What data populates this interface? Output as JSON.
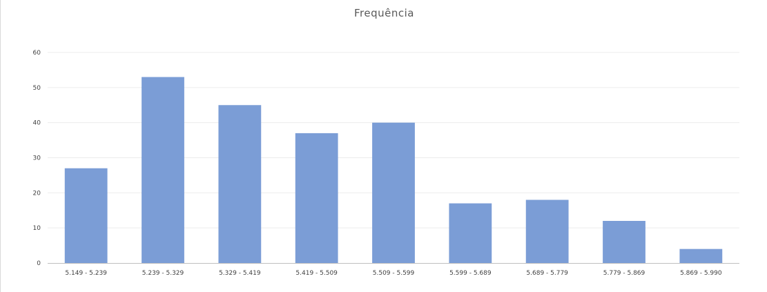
{
  "chart_data": {
    "type": "bar",
    "title": "Frequência",
    "xlabel": "",
    "ylabel": "",
    "categories": [
      "5.149 - 5.239",
      "5.239 - 5.329",
      "5.329 - 5.419",
      "5.419 - 5.509",
      "5.509 - 5.599",
      "5.599 - 5.689",
      "5.689 - 5.779",
      "5.779 - 5.869",
      "5.869 - 5.990"
    ],
    "values": [
      27,
      53,
      45,
      37,
      40,
      17,
      18,
      12,
      4
    ],
    "ylim": [
      0,
      60
    ],
    "yticks": [
      "0",
      "10",
      "20",
      "30",
      "40",
      "50",
      "60"
    ],
    "grid": true,
    "bar_color": "#7b9dd6",
    "grid_color": "#ececec",
    "axis_color": "#bfbfbf"
  }
}
